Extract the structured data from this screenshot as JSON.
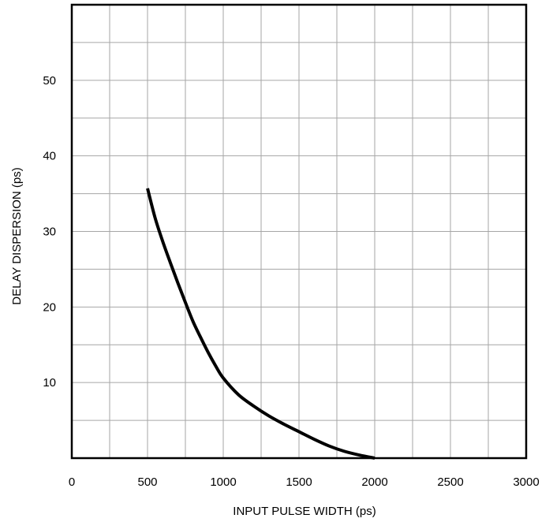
{
  "chart_data": {
    "type": "line",
    "title": "",
    "xlabel": "INPUT PULSE WIDTH (ps)",
    "ylabel": "DELAY DISPERSION (ps)",
    "xlim": [
      0,
      3000
    ],
    "ylim": [
      0,
      60
    ],
    "x_ticks": [
      0,
      500,
      1000,
      1500,
      2000,
      2500,
      3000
    ],
    "y_ticks": [
      10,
      20,
      30,
      40,
      50
    ],
    "x_tick_labels": [
      "0",
      "500",
      "1000",
      "1500",
      "2000",
      "2500",
      "3000"
    ],
    "y_tick_labels": [
      "10",
      "20",
      "30",
      "40",
      "50"
    ],
    "grid": true,
    "x_grid_step": 250,
    "y_grid_step": 5,
    "line_color": "#000000",
    "series": [
      {
        "x": [
          500,
          550,
          600,
          650,
          700,
          750,
          800,
          850,
          900,
          950,
          1000,
          1100,
          1200,
          1300,
          1400,
          1500,
          1600,
          1700,
          1800,
          1900,
          2000
        ],
        "y": [
          35.7,
          31.8,
          28.7,
          25.9,
          23.2,
          20.6,
          18.1,
          16.0,
          14.0,
          12.2,
          10.6,
          8.4,
          6.9,
          5.6,
          4.5,
          3.5,
          2.5,
          1.6,
          0.9,
          0.4,
          0.0
        ]
      }
    ]
  }
}
